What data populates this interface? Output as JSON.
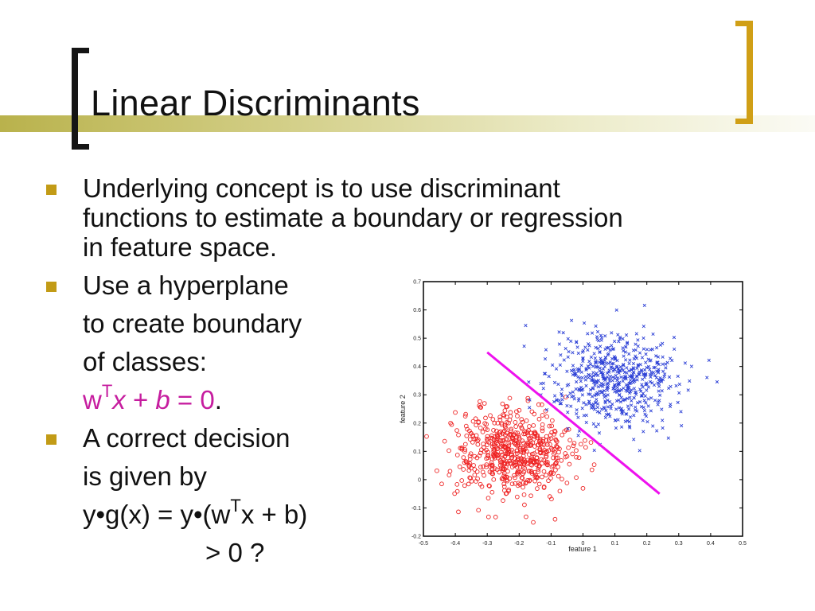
{
  "slide": {
    "title": "Linear Discriminants",
    "colors": {
      "bracket_left": "#151515",
      "bracket_right": "#d09f16",
      "bullet": "#c29b16",
      "accent_bar": "#b9b24c",
      "formula": "#c61d9f"
    },
    "bullets": [
      {
        "lines": [
          "Underlying concept is to use discriminant",
          "functions to estimate a boundary or regression",
          "in feature space."
        ]
      },
      {
        "lines": [
          "Use a hyperplane",
          "to create boundary",
          "of classes:"
        ],
        "formula": {
          "w": "w",
          "sup": "T",
          "x": "x",
          "plus": " + ",
          "b": "b",
          "eq": " = 0",
          "period": "."
        }
      },
      {
        "lines": [
          "A correct decision",
          "is given by"
        ],
        "formula_line": {
          "pre": "y•g(x) = y•(w",
          "sup": "T",
          "post": "x + b)"
        },
        "condition": "> 0 ?"
      }
    ]
  },
  "chart_data": {
    "type": "scatter",
    "xlabel": "feature 1",
    "ylabel": "feature 2",
    "xlim": [
      -0.5,
      0.5
    ],
    "ylim": [
      -0.2,
      0.7
    ],
    "x_ticks": [
      "-0.5",
      "-0.4",
      "-0.3",
      "-0.2",
      "-0.1",
      "0",
      "0.1",
      "0.2",
      "0.3",
      "0.4",
      "0.5"
    ],
    "y_ticks": [
      "-0.2",
      "-0.1",
      "0",
      "0.1",
      "0.2",
      "0.3",
      "0.4",
      "0.5",
      "0.6",
      "0.7"
    ],
    "series": [
      {
        "marker": "circle",
        "color": "#ee2222",
        "center": [
          -0.22,
          0.1
        ],
        "spread": [
          0.09,
          0.075
        ],
        "count": 600
      },
      {
        "marker": "x",
        "color": "#2b3fd6",
        "center": [
          0.1,
          0.35
        ],
        "spread": [
          0.1,
          0.085
        ],
        "count": 600
      }
    ],
    "boundary": {
      "color": "#ee11ee",
      "from": [
        -0.3,
        0.45
      ],
      "to": [
        0.24,
        -0.05
      ]
    }
  }
}
